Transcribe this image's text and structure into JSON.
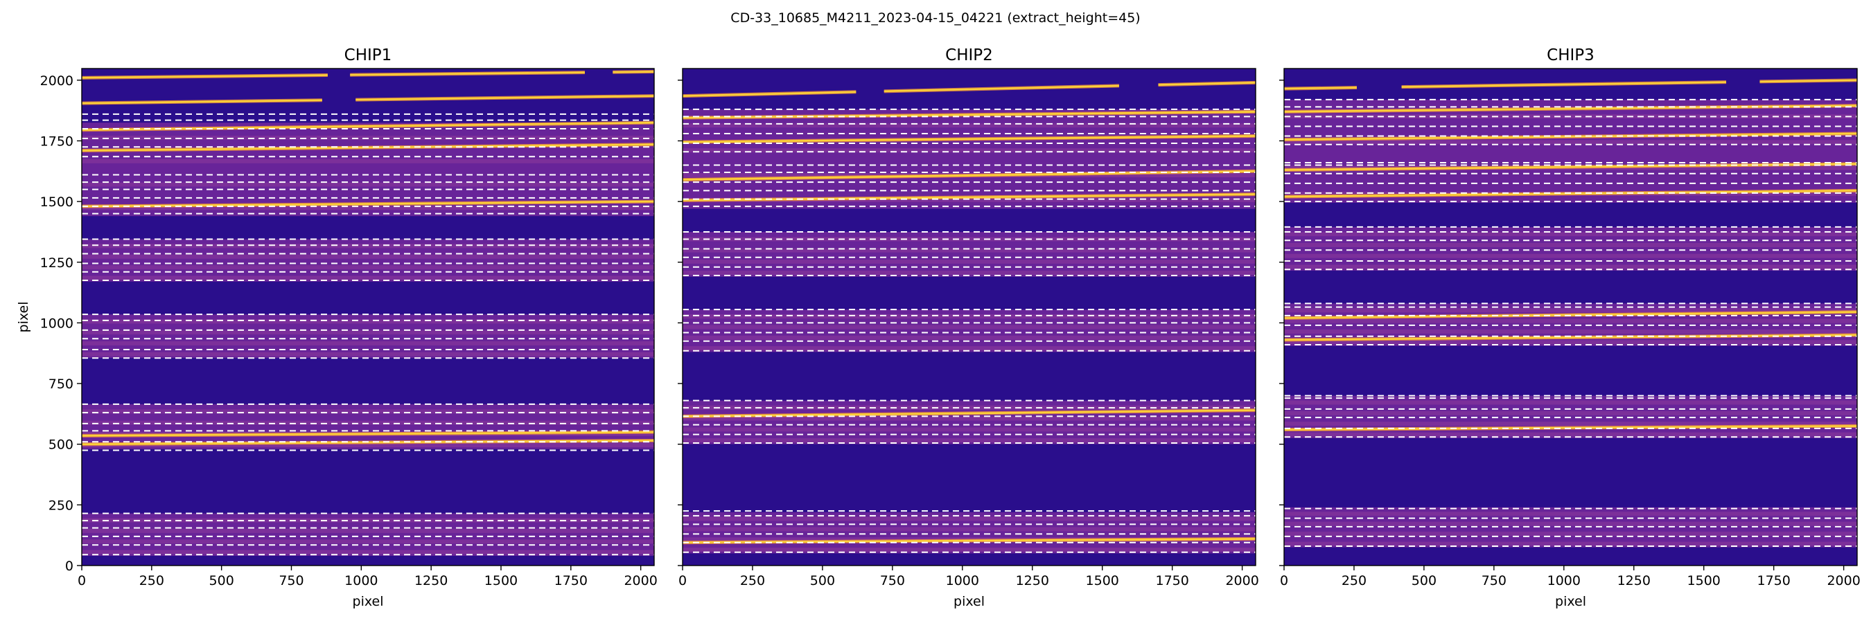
{
  "suptitle": "CD-33_10685_M4211_2023-04-15_04221  (extract_height=45)",
  "colors": {
    "background": "#2a0e8c",
    "background_dark": "#1e0a78",
    "order_band": "#7a2a9c",
    "order_band_light": "#a4479e",
    "trace_bright": "#fbd13a",
    "trace_edge": "#f0913a",
    "dashed_line": "#ffffff"
  },
  "chart_data": [
    {
      "type": "heatmap",
      "title": "CHIP1",
      "xlabel": "pixel",
      "ylabel": "pixel",
      "xlim": [
        0,
        2048
      ],
      "ylim": [
        0,
        2048
      ],
      "xticks": [
        0,
        250,
        500,
        750,
        1000,
        1250,
        1500,
        1750,
        2000
      ],
      "yticks": [
        0,
        250,
        500,
        750,
        1000,
        1250,
        1500,
        1750,
        2000
      ],
      "ytick_labels_shown": true,
      "colormap": "plasma",
      "bands": [
        [
          40,
          215
        ],
        [
          480,
          665
        ],
        [
          855,
          1035
        ],
        [
          1170,
          1345
        ],
        [
          1440,
          1825
        ]
      ],
      "traces": [
        {
          "y0": 2010,
          "y1": 2035,
          "gaps": [
            [
              880,
              960
            ],
            [
              1800,
              1900
            ]
          ]
        },
        {
          "y0": 1905,
          "y1": 1935,
          "gaps": [
            [
              860,
              980
            ]
          ]
        },
        {
          "y0": 1795,
          "y1": 1825
        },
        {
          "y0": 1710,
          "y1": 1735
        },
        {
          "y0": 1480,
          "y1": 1500
        },
        {
          "y0": 535,
          "y1": 550
        },
        {
          "y0": 500,
          "y1": 515
        }
      ],
      "dashed_lines": [
        45,
        85,
        120,
        155,
        185,
        215,
        475,
        510,
        555,
        585,
        630,
        665,
        855,
        890,
        935,
        970,
        1010,
        1035,
        1175,
        1210,
        1245,
        1285,
        1320,
        1345,
        1450,
        1480,
        1515,
        1550,
        1580,
        1610,
        1685,
        1725,
        1760,
        1800,
        1835,
        1860
      ]
    },
    {
      "type": "heatmap",
      "title": "CHIP2",
      "xlabel": "pixel",
      "ylabel": "",
      "xlim": [
        0,
        2048
      ],
      "ylim": [
        0,
        2048
      ],
      "xticks": [
        0,
        250,
        500,
        750,
        1000,
        1250,
        1500,
        1750,
        2000
      ],
      "yticks": [
        0,
        250,
        500,
        750,
        1000,
        1250,
        1500,
        1750,
        2000
      ],
      "ytick_labels_shown": false,
      "colormap": "plasma",
      "bands": [
        [
          50,
          220
        ],
        [
          500,
          680
        ],
        [
          880,
          1055
        ],
        [
          1190,
          1375
        ],
        [
          1470,
          1880
        ]
      ],
      "traces": [
        {
          "y0": 1935,
          "y1": 1990,
          "gaps": [
            [
              620,
              720
            ],
            [
              1560,
              1700
            ]
          ]
        },
        {
          "y0": 1845,
          "y1": 1870
        },
        {
          "y0": 1745,
          "y1": 1770
        },
        {
          "y0": 1590,
          "y1": 1625
        },
        {
          "y0": 1505,
          "y1": 1530
        },
        {
          "y0": 615,
          "y1": 640
        },
        {
          "y0": 95,
          "y1": 110
        }
      ],
      "dashed_lines": [
        55,
        95,
        130,
        170,
        205,
        225,
        505,
        540,
        580,
        615,
        650,
        680,
        885,
        925,
        960,
        1000,
        1030,
        1055,
        1195,
        1230,
        1270,
        1305,
        1345,
        1375,
        1480,
        1510,
        1545,
        1580,
        1620,
        1650,
        1705,
        1740,
        1780,
        1820,
        1850,
        1880
      ]
    },
    {
      "type": "heatmap",
      "title": "CHIP3",
      "xlabel": "pixel",
      "ylabel": "",
      "xlim": [
        0,
        2048
      ],
      "ylim": [
        0,
        2048
      ],
      "xticks": [
        0,
        250,
        500,
        750,
        1000,
        1250,
        1500,
        1750,
        2000
      ],
      "yticks": [
        0,
        250,
        500,
        750,
        1000,
        1250,
        1500,
        1750,
        2000
      ],
      "ytick_labels_shown": false,
      "colormap": "plasma",
      "bands": [
        [
          75,
          240
        ],
        [
          525,
          700
        ],
        [
          905,
          1080
        ],
        [
          1215,
          1395
        ],
        [
          1495,
          1920
        ]
      ],
      "traces": [
        {
          "y0": 1965,
          "y1": 2000,
          "gaps": [
            [
              260,
              420
            ],
            [
              1580,
              1700
            ]
          ]
        },
        {
          "y0": 1870,
          "y1": 1895
        },
        {
          "y0": 1755,
          "y1": 1780
        },
        {
          "y0": 1630,
          "y1": 1655
        },
        {
          "y0": 1520,
          "y1": 1545
        },
        {
          "y0": 1020,
          "y1": 1045
        },
        {
          "y0": 930,
          "y1": 950
        },
        {
          "y0": 560,
          "y1": 575
        }
      ],
      "dashed_lines": [
        80,
        120,
        160,
        195,
        235,
        530,
        565,
        610,
        645,
        690,
        700,
        910,
        945,
        990,
        1030,
        1065,
        1080,
        1220,
        1255,
        1300,
        1340,
        1375,
        1395,
        1500,
        1535,
        1575,
        1615,
        1650,
        1660,
        1735,
        1770,
        1810,
        1850,
        1890,
        1920
      ]
    }
  ]
}
